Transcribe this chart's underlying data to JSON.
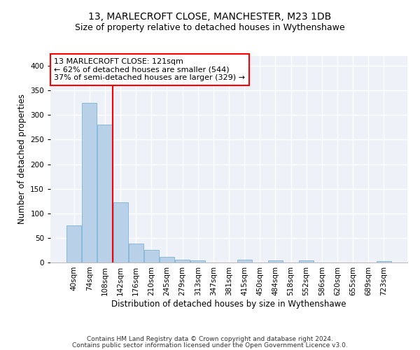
{
  "title": "13, MARLECROFT CLOSE, MANCHESTER, M23 1DB",
  "subtitle": "Size of property relative to detached houses in Wythenshawe",
  "xlabel": "Distribution of detached houses by size in Wythenshawe",
  "ylabel": "Number of detached properties",
  "footnote1": "Contains HM Land Registry data © Crown copyright and database right 2024.",
  "footnote2": "Contains public sector information licensed under the Open Government Licence v3.0.",
  "bin_labels": [
    "40sqm",
    "74sqm",
    "108sqm",
    "142sqm",
    "176sqm",
    "210sqm",
    "245sqm",
    "279sqm",
    "313sqm",
    "347sqm",
    "381sqm",
    "415sqm",
    "450sqm",
    "484sqm",
    "518sqm",
    "552sqm",
    "586sqm",
    "620sqm",
    "655sqm",
    "689sqm",
    "723sqm"
  ],
  "bar_values": [
    75,
    325,
    280,
    122,
    38,
    25,
    12,
    5,
    4,
    0,
    0,
    5,
    0,
    4,
    0,
    4,
    0,
    0,
    0,
    0,
    3
  ],
  "bar_color": "#b8d0e8",
  "bar_edge_color": "#6aaad4",
  "vline_x": 2.5,
  "vline_color": "red",
  "annotation_text": "13 MARLECROFT CLOSE: 121sqm\n← 62% of detached houses are smaller (544)\n37% of semi-detached houses are larger (329) →",
  "annotation_box_color": "white",
  "annotation_box_edge": "red",
  "ylim": [
    0,
    420
  ],
  "yticks": [
    0,
    50,
    100,
    150,
    200,
    250,
    300,
    350,
    400
  ],
  "bg_color": "#eef2f8",
  "grid_color": "white",
  "title_fontsize": 10,
  "subtitle_fontsize": 9,
  "axis_label_fontsize": 8.5,
  "tick_fontsize": 7.5,
  "annotation_fontsize": 8,
  "footnote_fontsize": 6.5
}
